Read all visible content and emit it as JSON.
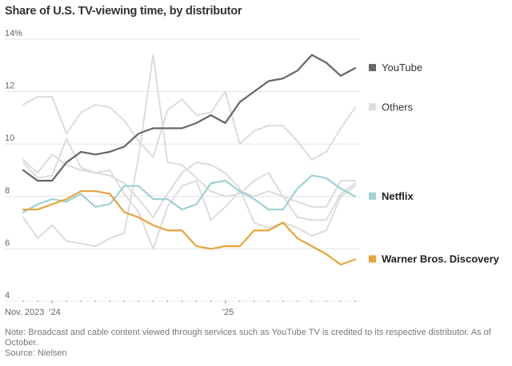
{
  "chart_data": {
    "type": "line",
    "title": "Share of U.S. TV-viewing time, by distributor",
    "xlabel": "",
    "ylabel": "",
    "y_unit": "%",
    "ylim": [
      4,
      14
    ],
    "yticks": [
      4,
      6,
      8,
      10,
      12,
      14
    ],
    "ytick_labels": [
      "4",
      "6",
      "8",
      "10",
      "12",
      "14%"
    ],
    "grid": true,
    "legend_placement": "right",
    "x": [
      "2023-11",
      "2023-12",
      "2024-01",
      "2024-02",
      "2024-03",
      "2024-04",
      "2024-05",
      "2024-06",
      "2024-07",
      "2024-08",
      "2024-09",
      "2024-10",
      "2024-11",
      "2024-12",
      "2025-01",
      "2025-02",
      "2025-03",
      "2025-04",
      "2025-05",
      "2025-06",
      "2025-07",
      "2025-08",
      "2025-09",
      "2025-10"
    ],
    "xtick_labels": [
      {
        "index": 0,
        "label": "Nov. 2023"
      },
      {
        "index": 2,
        "label": "’24"
      },
      {
        "index": 14,
        "label": "’25"
      }
    ],
    "series": [
      {
        "name": "Others",
        "color": "#dcdcdc",
        "legend": false,
        "values": [
          11.5,
          11.8,
          11.8,
          10.4,
          11.2,
          11.5,
          11.4,
          10.9,
          10.1,
          9.5,
          11.3,
          11.7,
          11.1,
          11.2,
          12.0,
          10.0,
          10.5,
          10.7,
          10.7,
          10.1,
          9.4,
          9.7,
          10.6,
          11.4
        ]
      },
      {
        "name": "Others",
        "color": "#dcdcdc",
        "legend": false,
        "values": [
          7.2,
          6.4,
          6.9,
          6.3,
          6.2,
          6.1,
          6.4,
          6.6,
          9.5,
          13.4,
          9.3,
          9.2,
          8.7,
          8.2,
          8.0,
          8.1,
          8.6,
          8.9,
          8.0,
          7.2,
          7.1,
          7.1,
          8.1,
          8.5
        ]
      },
      {
        "name": "Others",
        "color": "#dcdcdc",
        "legend": false,
        "values": [
          9.4,
          8.9,
          9.6,
          9.2,
          9.0,
          8.9,
          9.0,
          8.1,
          7.4,
          6.0,
          7.6,
          8.4,
          8.6,
          7.1,
          7.6,
          8.2,
          8.0,
          8.2,
          8.0,
          7.8,
          7.6,
          7.6,
          8.6,
          8.6
        ]
      },
      {
        "name": "Others",
        "color": "#dcdcdc",
        "legend": false,
        "values": [
          9.3,
          8.7,
          8.8,
          10.2,
          9.1,
          8.9,
          8.8,
          8.5,
          7.9,
          7.2,
          8.1,
          8.9,
          9.3,
          9.2,
          8.9,
          8.3,
          7.0,
          6.8,
          7.0,
          6.8,
          6.5,
          6.7,
          8.0,
          8.4
        ]
      },
      {
        "name": "YouTube",
        "color": "#666666",
        "values": [
          9.0,
          8.6,
          8.6,
          9.3,
          9.7,
          9.6,
          9.7,
          9.9,
          10.4,
          10.6,
          10.6,
          10.6,
          10.8,
          11.1,
          10.8,
          11.6,
          12.0,
          12.4,
          12.5,
          12.8,
          13.4,
          13.1,
          12.6,
          12.9
        ]
      },
      {
        "name": "Netflix",
        "color": "#9fd0d6",
        "values": [
          7.4,
          7.7,
          7.9,
          7.8,
          8.1,
          7.6,
          7.7,
          8.4,
          8.4,
          7.9,
          7.9,
          7.5,
          7.7,
          8.5,
          8.6,
          8.2,
          7.9,
          7.5,
          7.5,
          8.3,
          8.8,
          8.7,
          8.3,
          8.0
        ]
      },
      {
        "name": "Warner Bros. Discovery",
        "color": "#e5a43d",
        "values": [
          7.5,
          7.5,
          7.7,
          7.9,
          8.2,
          8.2,
          8.1,
          7.4,
          7.2,
          6.9,
          6.7,
          6.7,
          6.1,
          6.0,
          6.1,
          6.1,
          6.7,
          6.7,
          7.0,
          6.4,
          6.1,
          5.8,
          5.4,
          5.6
        ]
      }
    ],
    "legend": [
      {
        "label": "YouTube",
        "color": "#666666",
        "bold": false,
        "value_anchor": 12.9
      },
      {
        "label": "Others",
        "color": "#dcdcdc",
        "bold": false,
        "value_anchor": 11.4
      },
      {
        "label": "Netflix",
        "color": "#9fd0d6",
        "bold": true,
        "value_anchor": 8.0
      },
      {
        "label": "Warner Bros. Discovery",
        "color": "#e5a43d",
        "bold": true,
        "value_anchor": 5.6
      }
    ]
  },
  "footer": {
    "note": "Note: Broadcast and cable content viewed through services such as YouTube TV is credited to its respective distributor. As of October.",
    "source": "Source: Nielsen"
  }
}
